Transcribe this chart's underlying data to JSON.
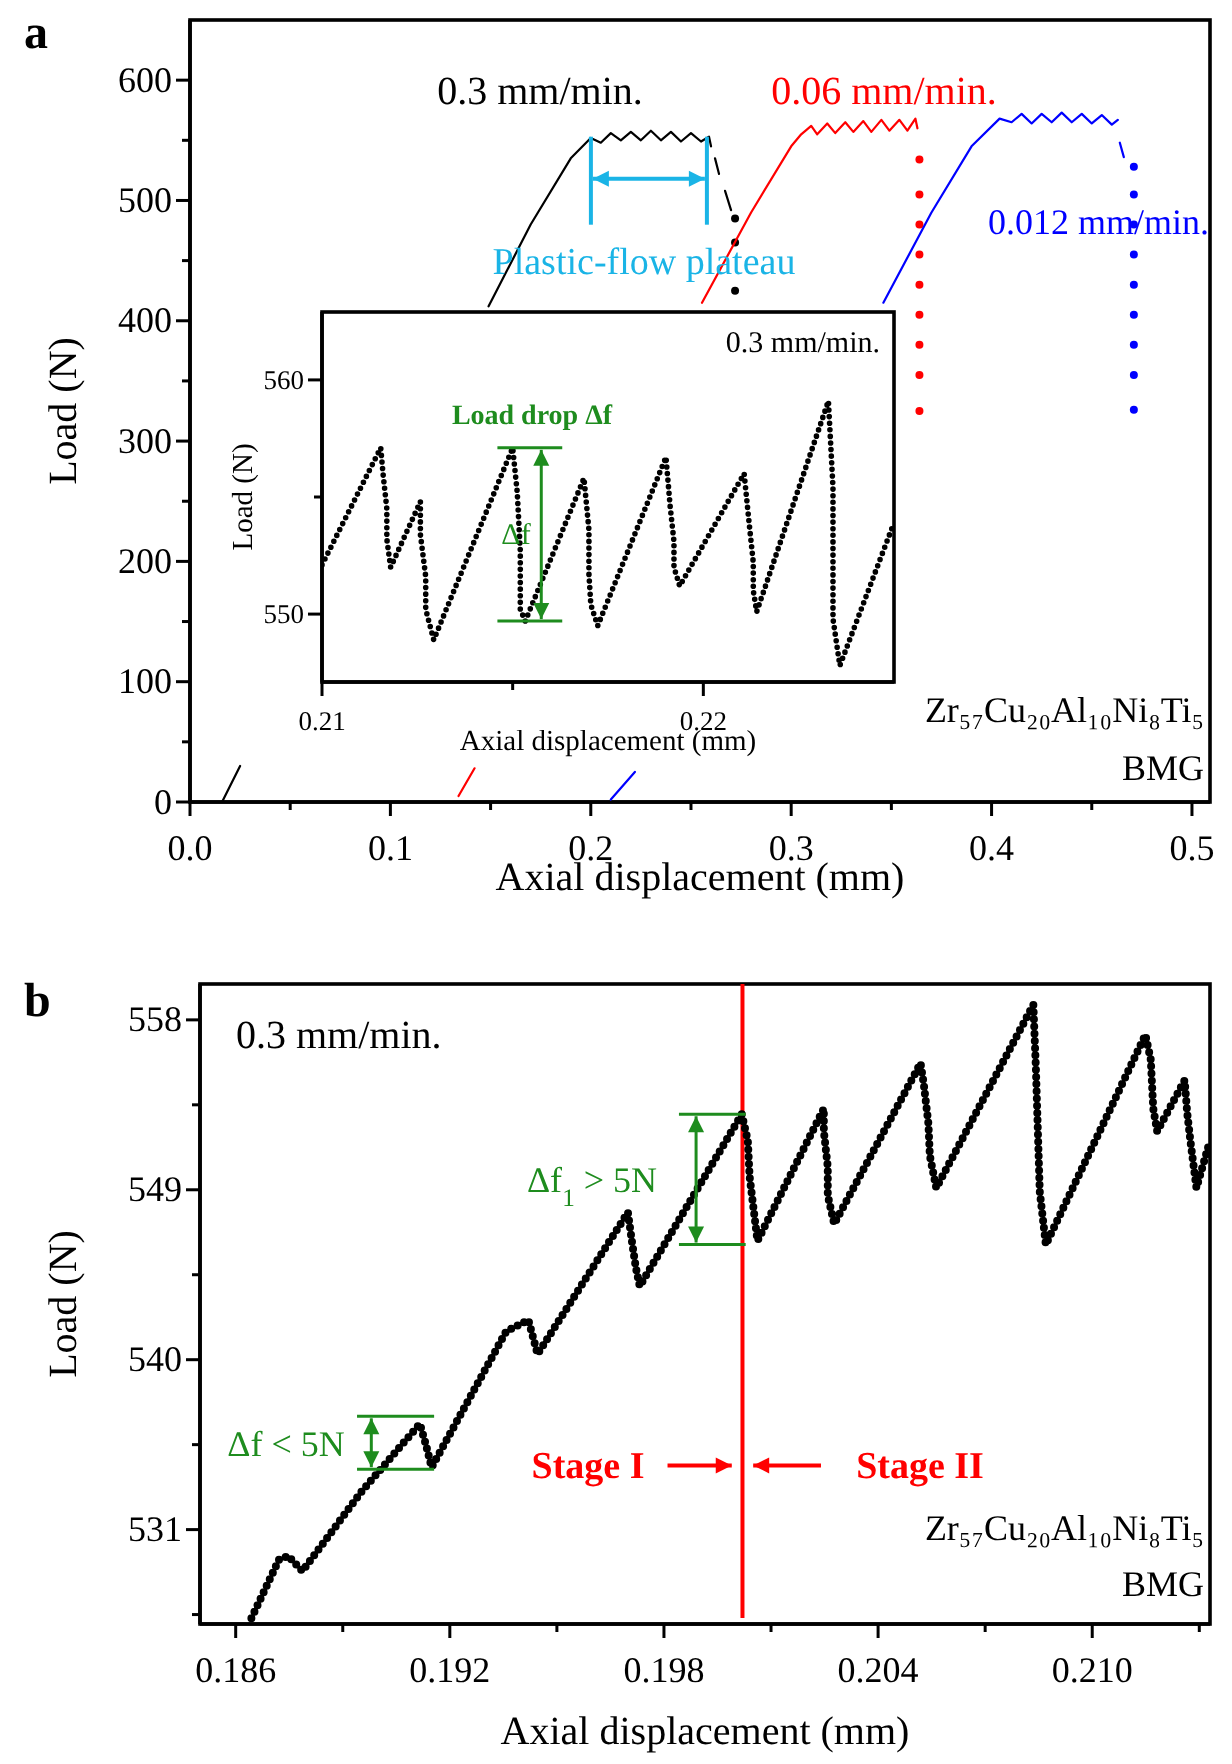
{
  "chart_data": [
    {
      "type": "line",
      "title": "a",
      "xlabel": "Axial displacement (mm)",
      "ylabel": "Load (N)",
      "xlim": [
        0,
        0.509
      ],
      "ylim": [
        0,
        650
      ],
      "xticks": [
        {
          "value": 0,
          "label": "0.0"
        },
        {
          "value": 0.05,
          "label": null
        },
        0.1,
        {
          "value": 0.15,
          "label": null
        },
        0.2,
        {
          "value": 0.25,
          "label": null
        },
        0.3,
        {
          "value": 0.35,
          "label": null
        },
        0.4,
        {
          "value": 0.45,
          "label": null
        },
        0.5
      ],
      "yticks": [
        0,
        {
          "value": 50,
          "label": null
        },
        100,
        {
          "value": 150,
          "label": null
        },
        200,
        {
          "value": 250,
          "label": null
        },
        300,
        {
          "value": 350,
          "label": null
        },
        400,
        {
          "value": 450,
          "label": null
        },
        500,
        {
          "value": 550,
          "label": null
        },
        600
      ],
      "series": [
        {
          "name": "0.3 mm/min.",
          "color": "#000000",
          "type": "line",
          "x": [
            0.016,
            0.025,
            null,
            0.149,
            0.17,
            0.19,
            0.2,
            0.205,
            0.21,
            0.215,
            0.22,
            0.225,
            0.23,
            0.235,
            0.24,
            0.245,
            0.25,
            0.255,
            0.259,
            0.26,
            null,
            0.262,
            0.264,
            null,
            0.267,
            0.27
          ],
          "values": [
            0,
            30,
            null,
            412,
            480,
            535,
            552,
            548,
            556,
            550,
            557,
            550,
            558,
            550,
            557,
            549,
            556,
            549,
            553,
            545,
            null,
            535,
            522,
            null,
            508,
            492
          ]
        },
        {
          "color": "#000000",
          "type": "scatter",
          "x": [
            0.272,
            0.272,
            0.272
          ],
          "values": [
            485,
            465,
            425
          ]
        },
        {
          "name": "0.06 mm/min.",
          "color": "#ff0000",
          "type": "line",
          "x": [
            0.134,
            0.142,
            null,
            0.2555,
            0.28,
            0.3,
            0.305,
            0.31,
            0.313,
            0.318,
            0.322,
            0.327,
            0.331,
            0.336,
            0.34,
            0.345,
            0.349,
            0.354,
            0.358,
            0.362,
            0.363
          ],
          "values": [
            5,
            28,
            null,
            415,
            490,
            545,
            555,
            562,
            555,
            564,
            556,
            565,
            557,
            566,
            557,
            567,
            558,
            567,
            558,
            568,
            560
          ]
        },
        {
          "color": "#ff0000",
          "type": "scatter",
          "x": [
            0.364,
            0.364,
            0.364,
            0.364,
            0.364,
            0.364,
            0.364,
            0.364,
            0.364
          ],
          "values": [
            534,
            505,
            480,
            455,
            430,
            405,
            380,
            355,
            325
          ]
        },
        {
          "name": "0.012 mm/min.",
          "color": "#0000ff",
          "type": "line",
          "x": [
            0.21,
            0.222,
            null,
            0.346,
            0.37,
            0.39,
            0.404,
            0.41,
            0.415,
            0.42,
            0.425,
            0.43,
            0.435,
            0.44,
            0.445,
            0.45,
            0.455,
            0.46,
            0.463,
            null,
            0.464,
            0.466
          ],
          "values": [
            2,
            25,
            null,
            415,
            490,
            545,
            568,
            565,
            572,
            564,
            572,
            565,
            573,
            565,
            572,
            564,
            571,
            563,
            567,
            null,
            548,
            536
          ]
        },
        {
          "color": "#0000ff",
          "type": "scatter",
          "x": [
            0.471,
            0.471,
            0.471,
            0.471,
            0.471,
            0.471,
            0.471,
            0.471,
            0.471
          ],
          "values": [
            528,
            505,
            480,
            455,
            430,
            405,
            380,
            355,
            326
          ]
        }
      ],
      "annotations": [
        {
          "text": "Plastic-flow plateau",
          "x": 0.229,
          "y": 553
        },
        "Zr₅₇Cu₂₀Al₁₀Ni₈Ti₅",
        "BMG"
      ]
    },
    {
      "type": "line",
      "xlabel": "Axial displacement (mm)",
      "ylabel": "Load (N)",
      "xlim": [
        0.21,
        0.225
      ],
      "ylim": [
        547.1,
        562.9
      ],
      "xticks": [
        0.21,
        {
          "value": 0.215,
          "label": null
        },
        0.22
      ],
      "yticks": [
        550,
        {
          "value": 555,
          "label": null
        },
        560
      ],
      "series": [
        {
          "name": "0.3 mm/min.",
          "color": "#000000",
          "type": "line",
          "line_style": "dotted",
          "x": [
            0.21,
            0.21154,
            0.2116,
            0.2117,
            0.2117,
            0.2118,
            0.21258,
            0.21258,
            0.21272,
            0.21272,
            0.21293,
            0.215,
            0.21512,
            0.2152,
            0.2152,
            0.2152,
            0.21533,
            0.21687,
            0.217,
            0.217,
            0.21705,
            0.21723,
            0.21902,
            0.21913,
            0.21923,
            0.21923,
            0.21938,
            0.22107,
            0.2212,
            0.22131,
            0.22131,
            0.2214,
            0.22328,
            0.2234,
            0.2234,
            0.2234,
            0.22358,
            0.225
          ],
          "values": [
            552.1,
            557.1,
            556.0,
            554.5,
            553.2,
            552.0,
            554.8,
            553.4,
            551.6,
            550.2,
            548.9,
            557.1,
            555.2,
            552.7,
            551.3,
            550.2,
            549.7,
            555.8,
            553.6,
            551.7,
            550.4,
            549.5,
            556.7,
            554.6,
            553.1,
            552.0,
            551.2,
            556.0,
            553.9,
            552.2,
            551.0,
            550.1,
            559.1,
            555.4,
            552.2,
            549.8,
            547.8,
            553.9
          ]
        }
      ],
      "annotations": [
        "Load drop Δf",
        "Δf"
      ]
    },
    {
      "type": "line",
      "title": "b",
      "xlabel": "Axial displacement (mm)",
      "ylabel": "Load (N)",
      "xlim": [
        0.185,
        0.2133
      ],
      "ylim": [
        526,
        559.9
      ],
      "xticks": [
        0.186,
        {
          "value": 0.189,
          "label": null
        },
        0.192,
        {
          "value": 0.195,
          "label": null
        },
        0.198,
        {
          "value": 0.201,
          "label": null
        },
        0.204,
        {
          "value": 0.207,
          "label": null
        },
        {
          "value": 0.21,
          "label": "0.210"
        },
        {
          "value": 0.213,
          "label": null
        }
      ],
      "yticks": [
        {
          "value": 526.5,
          "label": null
        },
        531,
        {
          "value": 535.5,
          "label": null
        },
        540,
        {
          "value": 544.5,
          "label": null
        },
        549,
        {
          "value": 553.5,
          "label": null
        },
        558
      ],
      "series": [
        {
          "name": "0.3 mm/min.",
          "color": "#000000",
          "type": "line",
          "line_style": "dotted",
          "x": [
            0.18644,
            0.18721,
            0.18747,
            0.18787,
            0.18952,
            0.19116,
            0.19133,
            0.19149,
            0.19358,
            0.1942,
            0.19446,
            0.19699,
            0.1971,
            0.19721,
            0.19732,
            0.20018,
            0.20035,
            0.2004,
            0.20062,
            0.20248,
            0.20248,
            0.20259,
            0.20259,
            0.20277,
            0.20519,
            0.20528,
            0.20541,
            0.20545,
            0.20563,
            0.20835,
            0.20842,
            0.20848,
            0.20853,
            0.2087,
            0.21149,
            0.21164,
            0.21171,
            0.21182,
            0.21259,
            0.21266,
            0.21275,
            0.21292,
            0.2133
          ],
          "values": [
            526.3,
            529.4,
            529.6,
            528.8,
            533.0,
            536.6,
            535.5,
            534.3,
            541.5,
            542.1,
            540.3,
            547.8,
            546.3,
            544.9,
            543.9,
            553.0,
            551.6,
            549.7,
            546.3,
            553.3,
            552.1,
            550.2,
            548.7,
            547.2,
            555.7,
            554.6,
            552.5,
            550.8,
            549.1,
            558.8,
            555.5,
            551.9,
            548.9,
            546.1,
            557.2,
            555.9,
            553.3,
            552.1,
            554.8,
            553.1,
            551.6,
            549.1,
            551.6
          ]
        }
      ],
      "ref_lines": [
        {
          "axis": "x",
          "value": 0.2002,
          "color": "#ff0000"
        }
      ],
      "annotations": [
        "Δf < 5N",
        "Δf$_{1}$ > 5N",
        "Stage I",
        "Stage II",
        "Zr₅₇Cu₂₀Al₁₀Ni₈Ti₅",
        "BMG"
      ]
    }
  ]
}
